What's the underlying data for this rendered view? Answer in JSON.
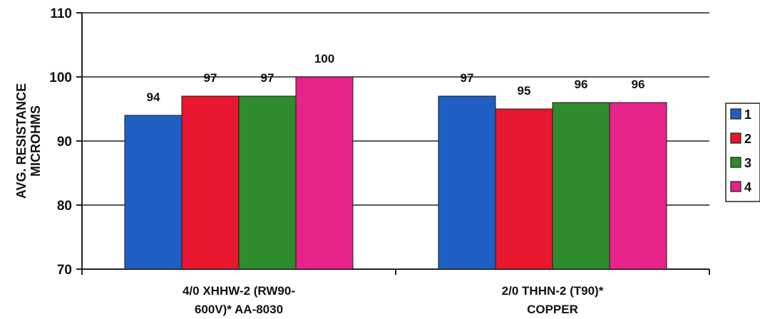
{
  "chart_data": {
    "type": "bar",
    "ylabel_lines": [
      "AVG. RESISTANCE",
      "MICROHMS"
    ],
    "categories": [
      [
        "4/0 XHHW-2 (RW90-",
        "600V)* AA-8030"
      ],
      [
        "2/0 THHN-2 (T90)*",
        "COPPER"
      ]
    ],
    "series": [
      {
        "name": "1",
        "color": "#1f5fc4",
        "values": [
          94,
          97
        ]
      },
      {
        "name": "2",
        "color": "#e8162e",
        "values": [
          97,
          95
        ]
      },
      {
        "name": "3",
        "color": "#2e8b2e",
        "values": [
          97,
          96
        ]
      },
      {
        "name": "4",
        "color": "#e8238a",
        "values": [
          100,
          96
        ]
      }
    ],
    "ylim": [
      70,
      110
    ],
    "yticks": [
      70,
      80,
      90,
      100,
      110
    ],
    "grid": true,
    "legend_position": "right"
  }
}
